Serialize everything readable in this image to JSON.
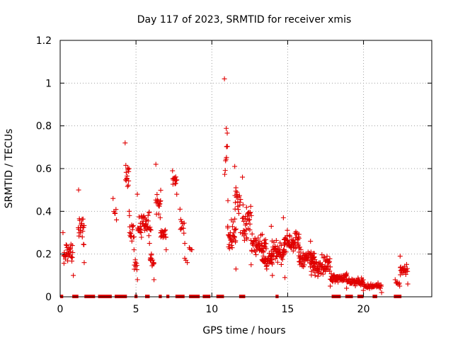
{
  "chart_data": {
    "type": "scatter",
    "title": "Day 117 of 2023, SRMTID for receiver xmis",
    "xlabel": "GPS time / hours",
    "ylabel": "SRMTID / TECUs",
    "xlim": [
      0,
      24.5
    ],
    "ylim": [
      0,
      1.2
    ],
    "x_ticks": [
      0,
      5,
      10,
      15,
      20
    ],
    "x_tick_labels": [
      "0",
      "5",
      "10",
      "15",
      "20"
    ],
    "y_ticks": [
      0,
      0.2,
      0.4,
      0.6,
      0.8,
      1.0,
      1.2
    ],
    "y_tick_labels": [
      "0",
      "0.2",
      "0.4",
      "0.6",
      "0.8",
      "1",
      "1.2"
    ],
    "grid": true,
    "marker": "plus",
    "series": [
      {
        "name": "SRMTID",
        "color": "#e00000",
        "clusters": [
          {
            "x_start": 0.2,
            "x_end": 0.85,
            "points": 34,
            "y_min": 0.1,
            "y_max": 0.3,
            "y_center": 0.2
          },
          {
            "x_start": 1.2,
            "x_end": 1.6,
            "points": 24,
            "y_min": 0.16,
            "y_max": 0.5,
            "y_center": 0.3
          },
          {
            "x_start": 3.5,
            "x_end": 3.7,
            "points": 6,
            "y_min": 0.36,
            "y_max": 0.46,
            "y_center": 0.4
          },
          {
            "x_start": 4.3,
            "x_end": 4.55,
            "points": 16,
            "y_min": 0.38,
            "y_max": 0.72,
            "y_center": 0.55
          },
          {
            "x_start": 4.55,
            "x_end": 4.85,
            "points": 14,
            "y_min": 0.22,
            "y_max": 0.4,
            "y_center": 0.3
          },
          {
            "x_start": 4.85,
            "x_end": 5.1,
            "points": 10,
            "y_min": 0.08,
            "y_max": 0.28,
            "y_center": 0.15
          },
          {
            "x_start": 5.1,
            "x_end": 6.0,
            "points": 48,
            "y_min": 0.2,
            "y_max": 0.48,
            "y_center": 0.33
          },
          {
            "x_start": 5.9,
            "x_end": 6.2,
            "points": 16,
            "y_min": 0.08,
            "y_max": 0.25,
            "y_center": 0.17
          },
          {
            "x_start": 6.3,
            "x_end": 6.65,
            "points": 18,
            "y_min": 0.28,
            "y_max": 0.62,
            "y_center": 0.4
          },
          {
            "x_start": 6.6,
            "x_end": 7.0,
            "points": 18,
            "y_min": 0.22,
            "y_max": 0.37,
            "y_center": 0.29
          },
          {
            "x_start": 7.4,
            "x_end": 7.7,
            "points": 14,
            "y_min": 0.48,
            "y_max": 0.59,
            "y_center": 0.55
          },
          {
            "x_start": 7.9,
            "x_end": 8.2,
            "points": 12,
            "y_min": 0.25,
            "y_max": 0.41,
            "y_center": 0.32
          },
          {
            "x_start": 8.2,
            "x_end": 8.4,
            "points": 3,
            "y_min": 0.16,
            "y_max": 0.18,
            "y_center": 0.17
          },
          {
            "x_start": 8.5,
            "x_end": 8.7,
            "points": 4,
            "y_min": 0.22,
            "y_max": 0.23,
            "y_center": 0.22
          },
          {
            "x_start": 10.85,
            "x_end": 11.05,
            "points": 12,
            "y_min": 0.33,
            "y_max": 1.02,
            "y_center": 0.68
          },
          {
            "x_start": 11.05,
            "x_end": 11.6,
            "points": 34,
            "y_min": 0.13,
            "y_max": 0.45,
            "y_center": 0.3
          },
          {
            "x_start": 11.5,
            "x_end": 11.9,
            "points": 20,
            "y_min": 0.3,
            "y_max": 0.61,
            "y_center": 0.45
          },
          {
            "x_start": 12.0,
            "x_end": 12.6,
            "points": 36,
            "y_min": 0.15,
            "y_max": 0.56,
            "y_center": 0.33
          },
          {
            "x_start": 12.6,
            "x_end": 13.6,
            "points": 50,
            "y_min": 0.13,
            "y_max": 0.38,
            "y_center": 0.24
          },
          {
            "x_start": 13.3,
            "x_end": 14.0,
            "points": 40,
            "y_min": 0.1,
            "y_max": 0.24,
            "y_center": 0.17
          },
          {
            "x_start": 13.9,
            "x_end": 14.8,
            "points": 50,
            "y_min": 0.09,
            "y_max": 0.33,
            "y_center": 0.2
          },
          {
            "x_start": 14.7,
            "x_end": 15.8,
            "points": 60,
            "y_min": 0.15,
            "y_max": 0.37,
            "y_center": 0.26
          },
          {
            "x_start": 15.7,
            "x_end": 16.8,
            "points": 60,
            "y_min": 0.1,
            "y_max": 0.28,
            "y_center": 0.17
          },
          {
            "x_start": 16.5,
            "x_end": 17.8,
            "points": 70,
            "y_min": 0.05,
            "y_max": 0.26,
            "y_center": 0.14
          },
          {
            "x_start": 17.8,
            "x_end": 18.9,
            "points": 55,
            "y_min": 0.04,
            "y_max": 0.14,
            "y_center": 0.09
          },
          {
            "x_start": 18.9,
            "x_end": 20.0,
            "points": 50,
            "y_min": 0.03,
            "y_max": 0.11,
            "y_center": 0.07
          },
          {
            "x_start": 20.0,
            "x_end": 21.2,
            "points": 40,
            "y_min": 0.02,
            "y_max": 0.08,
            "y_center": 0.05
          },
          {
            "x_start": 22.1,
            "x_end": 22.4,
            "points": 8,
            "y_min": 0.05,
            "y_max": 0.08,
            "y_center": 0.06
          },
          {
            "x_start": 22.4,
            "x_end": 22.9,
            "points": 28,
            "y_min": 0.06,
            "y_max": 0.19,
            "y_center": 0.12
          }
        ],
        "zero_value_runs": [
          {
            "x_start": 0.0,
            "x_end": 0.2
          },
          {
            "x_start": 0.8,
            "x_end": 1.2
          },
          {
            "x_start": 1.6,
            "x_end": 2.3
          },
          {
            "x_start": 2.5,
            "x_end": 3.4
          },
          {
            "x_start": 3.6,
            "x_end": 4.4
          },
          {
            "x_start": 4.9,
            "x_end": 5.1
          },
          {
            "x_start": 5.6,
            "x_end": 5.9
          },
          {
            "x_start": 6.5,
            "x_end": 6.7
          },
          {
            "x_start": 7.0,
            "x_end": 7.2
          },
          {
            "x_start": 7.6,
            "x_end": 8.2
          },
          {
            "x_start": 8.5,
            "x_end": 9.2
          },
          {
            "x_start": 9.4,
            "x_end": 9.9
          },
          {
            "x_start": 10.3,
            "x_end": 10.8
          },
          {
            "x_start": 11.8,
            "x_end": 12.2
          },
          {
            "x_start": 14.2,
            "x_end": 14.4
          },
          {
            "x_start": 17.9,
            "x_end": 18.5
          },
          {
            "x_start": 18.8,
            "x_end": 19.3
          },
          {
            "x_start": 19.6,
            "x_end": 20.0
          },
          {
            "x_start": 20.6,
            "x_end": 20.9
          },
          {
            "x_start": 22.0,
            "x_end": 22.5
          }
        ]
      }
    ]
  }
}
